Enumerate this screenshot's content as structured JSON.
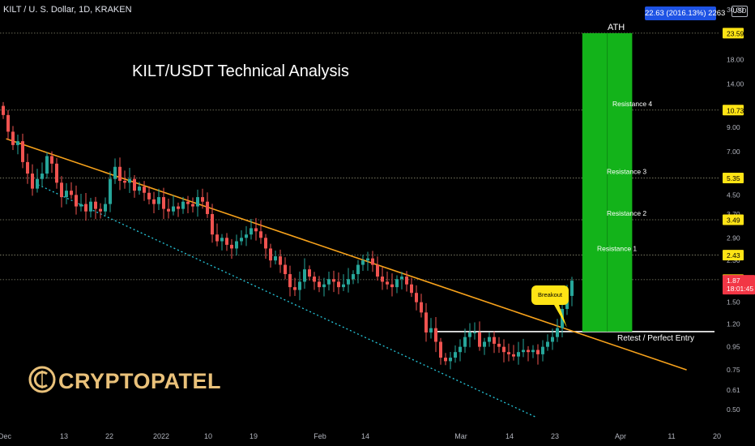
{
  "header": {
    "symbol": "KILT / U. S. Dollar, 1D, KRAKEN",
    "currency": "USD"
  },
  "annotations": {
    "title": "KILT/USDT Technical Analysis",
    "ath_label": "ATH",
    "ath_box": "22.63 (2016.13%) 2263",
    "breakout": "Breakout",
    "retest": "Retest / Perfect Entry",
    "resistance_labels": [
      "Resistance 1",
      "Resistance 2",
      "Resistance 3",
      "Resistance 4"
    ]
  },
  "brand": {
    "name": "CRYPTOPATEL"
  },
  "price_axis": {
    "ticks": [
      "30.00",
      "18.00",
      "14.00",
      "9.00",
      "7.00",
      "4.50",
      "3.70",
      "2.90",
      "2.30",
      "1.50",
      "1.20",
      "0.95",
      "0.75",
      "0.61",
      "0.50"
    ],
    "tick_values": [
      30,
      18,
      14,
      9,
      7,
      4.5,
      3.7,
      2.9,
      2.3,
      1.5,
      1.2,
      0.95,
      0.75,
      0.61,
      0.5
    ],
    "level_labels": [
      {
        "text": "23.59",
        "value": 23.59,
        "color": "#ffe415"
      },
      {
        "text": "10.73",
        "value": 10.73,
        "color": "#ffe415"
      },
      {
        "text": "5.35",
        "value": 5.35,
        "color": "#ffe415"
      },
      {
        "text": "3.49",
        "value": 3.49,
        "color": "#ffe415"
      },
      {
        "text": "2.43",
        "value": 2.43,
        "color": "#ffe415"
      },
      {
        "text": "1.89",
        "value": 1.89,
        "color": "#ffe415"
      }
    ],
    "current_price": {
      "price": "1.87",
      "countdown": "18:01:45",
      "value": 1.87,
      "color": "#f23645"
    }
  },
  "time_axis": [
    "Dec",
    "13",
    "22",
    "2022",
    "10",
    "19",
    "Feb",
    "14",
    "Mar",
    "14",
    "23",
    "Apr",
    "11",
    "20"
  ],
  "colors": {
    "up": "#26a69a",
    "down": "#ef5350",
    "trendline": "#f7a21b",
    "channel": "#26c6da",
    "target": "#13b31a",
    "grid": "#8a8a70"
  },
  "chart_data": {
    "type": "candlestick",
    "scale": "log",
    "ylim": [
      0.46,
      31
    ],
    "xlim": [
      "2021-12-01",
      "2022-04-30"
    ],
    "horizontal_levels": [
      {
        "label": "ATH",
        "value": 23.59
      },
      {
        "label": "Resistance 4",
        "value": 10.73
      },
      {
        "label": "Resistance 3",
        "value": 5.35
      },
      {
        "label": "Resistance 2",
        "value": 3.49
      },
      {
        "label": "Resistance 1",
        "value": 2.43
      },
      {
        "label": "",
        "value": 1.89
      }
    ],
    "retest_level": 1.11,
    "trendline": {
      "from": [
        "2021-12-01",
        8.0
      ],
      "to": [
        "2022-04-30",
        0.75
      ]
    },
    "channel_line": {
      "from": [
        "2021-12-08",
        5.0
      ],
      "to": [
        "2022-03-28",
        0.46
      ]
    },
    "target_zone": {
      "from_date": "2022-04-07",
      "to_date": "2022-04-18",
      "low": 1.11,
      "high": 23.59
    },
    "close": [
      10.2,
      8.6,
      7.5,
      7.8,
      6.3,
      5.6,
      4.8,
      5.3,
      5.6,
      6.7,
      6.2,
      5.1,
      4.4,
      4.7,
      4.5,
      4.0,
      4.1,
      3.8,
      4.2,
      3.9,
      3.8,
      4.1,
      5.3,
      6.0,
      5.2,
      5.1,
      5.3,
      4.7,
      4.9,
      4.6,
      4.3,
      4.1,
      4.4,
      3.9,
      3.8,
      4.0,
      3.9,
      4.2,
      4.1,
      4.0,
      4.4,
      4.2,
      3.7,
      3.0,
      2.8,
      2.9,
      2.7,
      2.6,
      2.8,
      2.9,
      3.0,
      3.2,
      3.1,
      2.9,
      2.6,
      2.3,
      2.4,
      2.2,
      2.0,
      1.75,
      1.7,
      1.85,
      2.1,
      1.95,
      1.85,
      1.75,
      1.8,
      1.9,
      1.85,
      1.75,
      1.8,
      1.9,
      2.0,
      2.2,
      2.3,
      2.35,
      2.2,
      1.95,
      1.85,
      1.8,
      1.75,
      1.9,
      1.95,
      1.8,
      1.65,
      1.5,
      1.35,
      1.1,
      1.15,
      1.0,
      0.85,
      0.82,
      0.85,
      0.9,
      0.95,
      1.05,
      1.1,
      1.1,
      0.95,
      1.0,
      1.05,
      0.98,
      0.95,
      0.9,
      0.88,
      0.86,
      0.9,
      0.92,
      0.9,
      0.92,
      0.88,
      0.95,
      1.0,
      1.05,
      1.15,
      1.4,
      1.6,
      1.87
    ]
  }
}
